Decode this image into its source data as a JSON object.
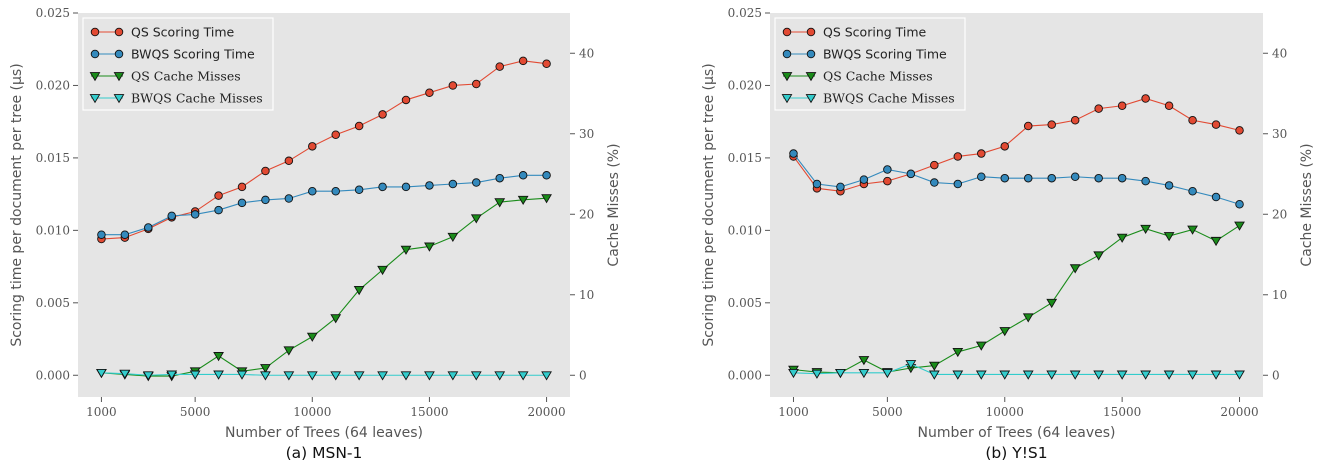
{
  "chart_data": [
    {
      "type": "line",
      "caption": "(a) MSN-1",
      "xlabel": "Number of Trees (64 leaves)",
      "ylabel": "Scoring time per document per tree (μs)",
      "y2label": "Cache Misses (%)",
      "xlim": [
        0,
        21000
      ],
      "ylim": [
        -0.0015,
        0.025
      ],
      "y2lim": [
        -2.7,
        45
      ],
      "xticks": [
        "1000",
        "5000",
        "10000",
        "15000",
        "20000"
      ],
      "yticks": [
        "0.000",
        "0.005",
        "0.010",
        "0.015",
        "0.020",
        "0.025"
      ],
      "y2ticks": [
        "0",
        "10",
        "20",
        "30",
        "40"
      ],
      "legend_position": "top-left",
      "x": [
        1000,
        2000,
        3000,
        4000,
        5000,
        6000,
        7000,
        8000,
        9000,
        10000,
        11000,
        12000,
        13000,
        14000,
        15000,
        16000,
        17000,
        18000,
        19000,
        20000
      ],
      "series": [
        {
          "name": "QS Scoring Time",
          "axis": "left",
          "marker": "circle",
          "color": "#e24a33",
          "values": [
            0.0094,
            0.0095,
            0.0101,
            0.0109,
            0.0113,
            0.0124,
            0.013,
            0.0141,
            0.0148,
            0.0158,
            0.0166,
            0.0172,
            0.018,
            0.019,
            0.0195,
            0.02,
            0.0201,
            0.0213,
            0.0217,
            0.0215
          ]
        },
        {
          "name": "BWQS Scoring Time",
          "axis": "left",
          "marker": "circle",
          "color": "#348abd",
          "values": [
            0.0097,
            0.0097,
            0.0102,
            0.011,
            0.0111,
            0.0114,
            0.0119,
            0.0121,
            0.0122,
            0.0127,
            0.0127,
            0.0128,
            0.013,
            0.013,
            0.0131,
            0.0132,
            0.0133,
            0.0136,
            0.0138,
            0.0138
          ]
        },
        {
          "name": "QS Cache Misses",
          "axis": "right",
          "marker": "triangle-down",
          "color": "#1a8c1a",
          "values": [
            0.3,
            0.1,
            -0.1,
            -0.1,
            0.5,
            2.4,
            0.5,
            0.9,
            3.1,
            4.8,
            7.1,
            10.6,
            13.1,
            15.6,
            16.0,
            17.2,
            19.5,
            21.5,
            21.8,
            22.0
          ]
        },
        {
          "name": "BWQS Cache Misses",
          "axis": "right",
          "marker": "triangle-down",
          "color": "#33cccc",
          "values": [
            0.3,
            0.2,
            0.0,
            0.1,
            0.1,
            0.1,
            0.1,
            0.0,
            0.0,
            0.0,
            0.0,
            0.0,
            0.0,
            0.0,
            0.0,
            0.0,
            0.0,
            0.0,
            0.0,
            0.0
          ]
        }
      ]
    },
    {
      "type": "line",
      "caption": "(b) Y!S1",
      "xlabel": "Number of Trees (64 leaves)",
      "ylabel": "Scoring time per document per tree (μs)",
      "y2label": "Cache Misses (%)",
      "xlim": [
        0,
        21000
      ],
      "ylim": [
        -0.0015,
        0.025
      ],
      "y2lim": [
        -2.7,
        45
      ],
      "xticks": [
        "1000",
        "5000",
        "10000",
        "15000",
        "20000"
      ],
      "yticks": [
        "0.000",
        "0.005",
        "0.010",
        "0.015",
        "0.020",
        "0.025"
      ],
      "y2ticks": [
        "0",
        "10",
        "20",
        "30",
        "40"
      ],
      "legend_position": "top-left",
      "x": [
        1000,
        2000,
        3000,
        4000,
        5000,
        6000,
        7000,
        8000,
        9000,
        10000,
        11000,
        12000,
        13000,
        14000,
        15000,
        16000,
        17000,
        18000,
        19000,
        20000
      ],
      "series": [
        {
          "name": "QS Scoring Time",
          "axis": "left",
          "marker": "circle",
          "color": "#e24a33",
          "values": [
            0.0151,
            0.0129,
            0.0127,
            0.0132,
            0.0134,
            0.0139,
            0.0145,
            0.0151,
            0.0153,
            0.0158,
            0.0172,
            0.0173,
            0.0176,
            0.0184,
            0.0186,
            0.0191,
            0.0186,
            0.0176,
            0.0173,
            0.0169
          ]
        },
        {
          "name": "BWQS Scoring Time",
          "axis": "left",
          "marker": "circle",
          "color": "#348abd",
          "values": [
            0.0153,
            0.0132,
            0.013,
            0.0135,
            0.0142,
            0.0139,
            0.0133,
            0.0132,
            0.0137,
            0.0136,
            0.0136,
            0.0136,
            0.0137,
            0.0136,
            0.0136,
            0.0134,
            0.0131,
            0.0127,
            0.0123,
            0.0118
          ]
        },
        {
          "name": "QS Cache Misses",
          "axis": "right",
          "marker": "triangle-down",
          "color": "#1a8c1a",
          "values": [
            0.7,
            0.4,
            0.3,
            1.9,
            0.4,
            0.9,
            1.2,
            2.9,
            3.7,
            5.5,
            7.2,
            9.0,
            13.3,
            14.9,
            17.1,
            18.2,
            17.3,
            18.1,
            16.7,
            18.6
          ]
        },
        {
          "name": "BWQS Cache Misses",
          "axis": "right",
          "marker": "triangle-down",
          "color": "#33cccc",
          "values": [
            0.3,
            0.2,
            0.3,
            0.3,
            0.3,
            1.4,
            0.1,
            0.1,
            0.1,
            0.1,
            0.1,
            0.1,
            0.1,
            0.1,
            0.1,
            0.1,
            0.1,
            0.1,
            0.1,
            0.1
          ]
        }
      ]
    }
  ]
}
